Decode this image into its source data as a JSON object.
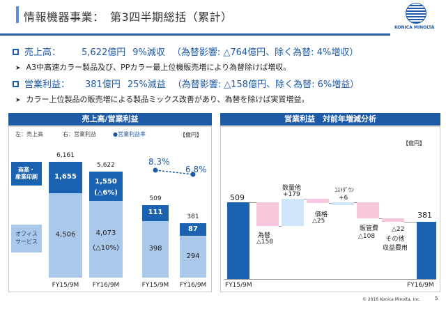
{
  "header": {
    "title": "情報機器事業：　第3四半期総括（累計）",
    "logo_text": "KONICA MINOLTA"
  },
  "bullets": [
    {
      "label": "売上高：",
      "value": "5,622億円",
      "change": "9%減収",
      "note": "（為替影響: △764億円、除く為替: 4%増収）"
    },
    {
      "label": "営業利益：",
      "value": "381億円",
      "change": "25%減益",
      "note": "（為替影響: △158億円、除く為替: 6%増益）"
    }
  ],
  "sub_bullets": [
    "A3中高速カラー製品及び、PPカラー最上位機販売増により為替除けば増収。",
    "カラー上位製品の販売増による製品ミックス改善があり、為替を除けば実質増益。"
  ],
  "left_panel": {
    "title": "売上高/営業利益",
    "legend_left": "左：売上高",
    "legend_right": "右：営業利益",
    "legend_margin": "●営業利益率",
    "unit": "【億円】",
    "segment_label_top": "商業・\n産業印刷",
    "segment_label_bottom": "オフィス\nサービス"
  },
  "right_panel": {
    "title": "営業利益　対前年増減分析",
    "unit": "【億円】"
  },
  "footer": {
    "copyright": "© 2016 Konica Minolta, Inc.",
    "page": "5"
  },
  "colors": {
    "brand": "#1f5aa6",
    "dark_bar": "#1b62b0",
    "light_bar": "#a9c8ea",
    "pink": "#f6c7dc",
    "light_blue": "#cfe6fa",
    "pink_border": "#e79ac0"
  },
  "chart_data": [
    {
      "type": "bar",
      "title": "売上高",
      "categories": [
        "FY15/9M",
        "FY16/9M"
      ],
      "series": [
        {
          "name": "オフィスサービス",
          "values": [
            4506,
            4073
          ],
          "labels": [
            "4,506",
            "4,073"
          ]
        },
        {
          "name": "商業・産業印刷",
          "values": [
            1655,
            1550
          ],
          "labels": [
            "1,655",
            "1,550"
          ]
        }
      ],
      "totals": [
        6161,
        5622
      ],
      "total_labels": [
        "6,161",
        "5,622"
      ],
      "annotations": [
        "(△6%)",
        "(△10%)"
      ]
    },
    {
      "type": "bar",
      "title": "営業利益",
      "categories": [
        "FY15/9M",
        "FY16/9M"
      ],
      "series": [
        {
          "name": "オフィスサービス",
          "values": [
            398,
            294
          ],
          "labels": [
            "398",
            "294"
          ]
        },
        {
          "name": "商業・産業印刷",
          "values": [
            111,
            87
          ],
          "labels": [
            "111",
            "87"
          ]
        }
      ],
      "totals": [
        509,
        381
      ],
      "total_labels": [
        "509",
        "381"
      ]
    },
    {
      "type": "line",
      "title": "営業利益率",
      "categories": [
        "FY15/9M",
        "FY16/9M"
      ],
      "values": [
        8.3,
        6.8
      ],
      "labels": [
        "8.3%",
        "6.8%"
      ]
    },
    {
      "type": "bar",
      "title": "営業利益　対前年増減分析",
      "steps": [
        {
          "name": "FY15/9M",
          "value": 509,
          "kind": "total",
          "label": "509"
        },
        {
          "name": "為替",
          "value": -158,
          "kind": "decrease",
          "label": "△158"
        },
        {
          "name": "数量他",
          "value": 179,
          "kind": "increase",
          "label": "+179"
        },
        {
          "name": "価格",
          "value": -25,
          "kind": "decrease",
          "label": "△25"
        },
        {
          "name": "ｺｽﾄﾀﾞｳﾝ",
          "value": 6,
          "kind": "increase",
          "label": "+6"
        },
        {
          "name": "販管費",
          "value": -108,
          "kind": "decrease",
          "label": "△108"
        },
        {
          "name": "その他\n収益費用",
          "value": -22,
          "kind": "decrease",
          "label": "△22"
        },
        {
          "name": "FY16/9M",
          "value": 381,
          "kind": "total",
          "label": "381"
        }
      ]
    }
  ]
}
